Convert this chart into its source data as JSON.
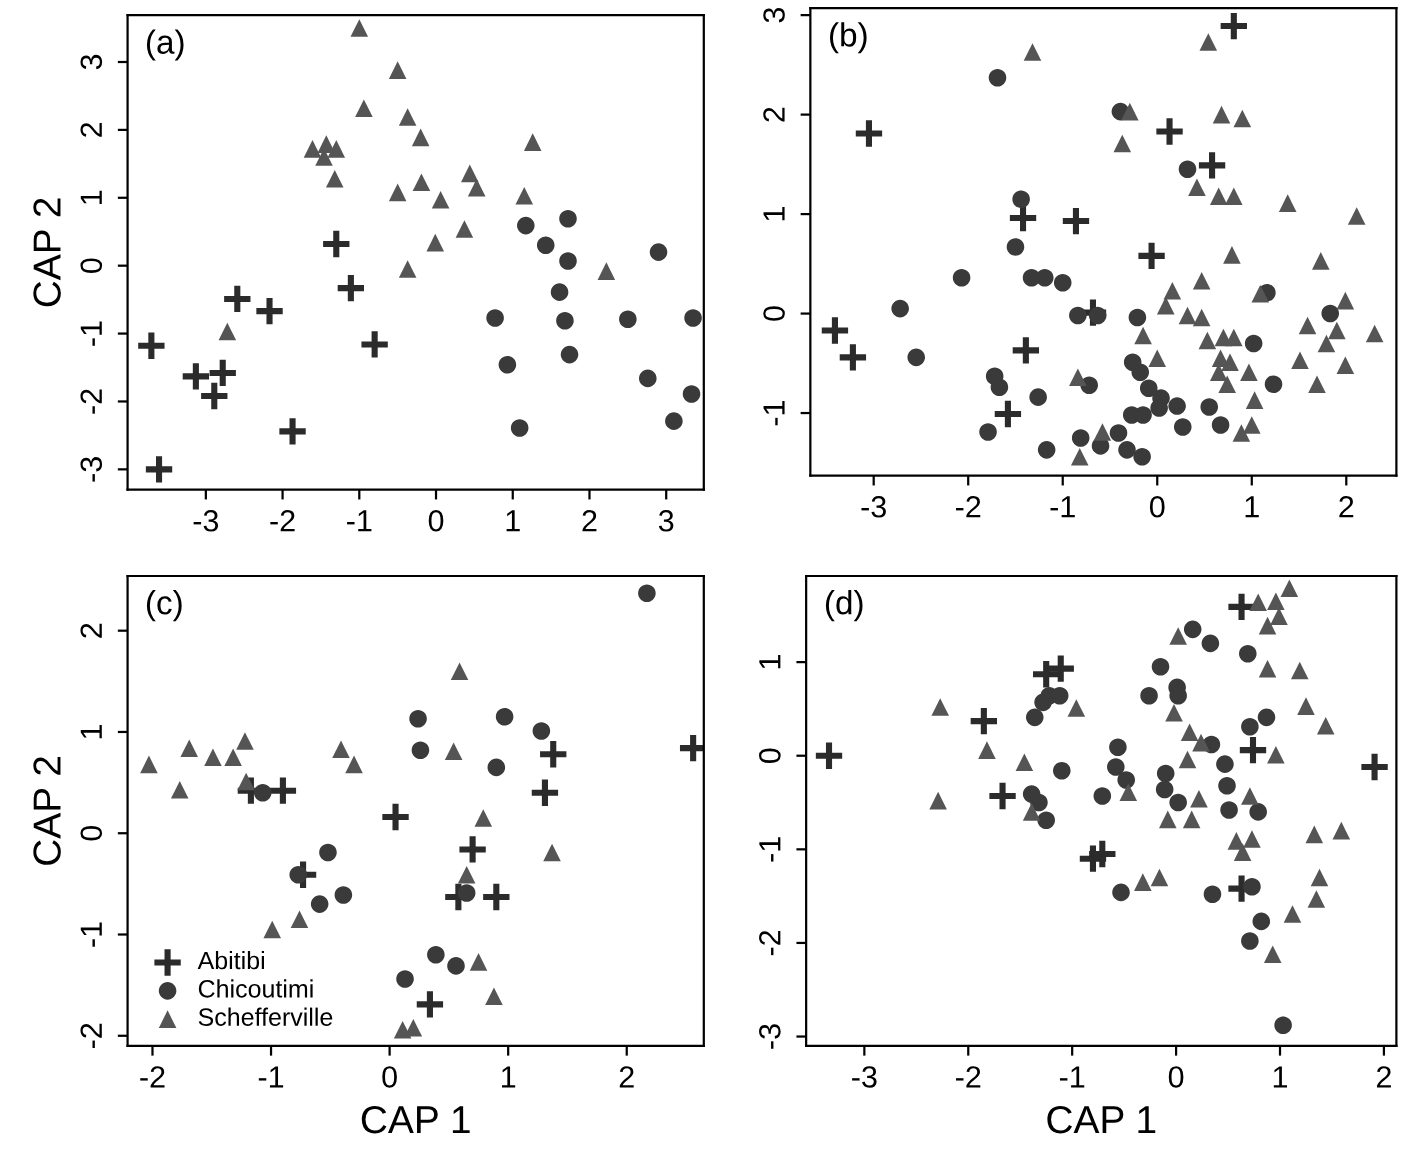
{
  "chart_data": [
    {
      "type": "scatter",
      "annotations": [
        "(a)"
      ],
      "ylabel": "CAP 2",
      "xlim": [
        -4.02,
        3.49
      ],
      "ylim": [
        -3.3,
        3.69
      ],
      "xticks": [
        -3,
        -2,
        -1,
        0,
        1,
        2,
        3
      ],
      "yticks": [
        -3,
        -2,
        -1,
        0,
        1,
        2,
        3
      ],
      "grid": false,
      "legend": false,
      "series": [
        {
          "marker": "cross",
          "color": "#2b2b2b",
          "x": [
            -3.71,
            -3.61,
            -3.13,
            -2.78,
            -2.89,
            -2.59,
            -2.17,
            -1.87,
            -1.3,
            -1.11,
            -0.8
          ],
          "values": [
            -1.18,
            -3.0,
            -1.63,
            -1.58,
            -1.92,
            -0.49,
            -0.67,
            -2.44,
            0.32,
            -0.33,
            -1.16
          ]
        },
        {
          "marker": "circle",
          "color": "#3a3a3a",
          "x": [
            0.77,
            0.93,
            1.09,
            1.17,
            1.43,
            1.72,
            1.72,
            1.61,
            1.68,
            1.74,
            2.5,
            2.76,
            2.9,
            3.1,
            3.33,
            3.35
          ],
          "values": [
            -0.77,
            -1.46,
            -2.39,
            0.59,
            0.3,
            0.69,
            0.07,
            -0.39,
            -0.81,
            -1.31,
            -0.79,
            -1.66,
            0.2,
            -2.29,
            -1.89,
            -0.77
          ]
        },
        {
          "marker": "triangle",
          "color": "#555555",
          "x": [
            -1.0,
            -0.5,
            -0.94,
            -0.37,
            -0.2,
            1.26,
            -1.61,
            -1.43,
            -1.3,
            -1.46,
            -1.32,
            -0.5,
            -0.19,
            0.06,
            0.44,
            0.53,
            1.15,
            0.37,
            -0.01,
            -0.37,
            2.22,
            -2.72
          ],
          "values": [
            3.5,
            2.88,
            2.32,
            2.19,
            1.89,
            1.82,
            1.72,
            1.79,
            1.72,
            1.6,
            1.28,
            1.08,
            1.23,
            0.97,
            1.36,
            1.15,
            1.03,
            0.54,
            0.34,
            -0.05,
            -0.08,
            -0.97
          ]
        }
      ]
    },
    {
      "type": "scatter",
      "annotations": [
        "(b)"
      ],
      "xlim": [
        -3.67,
        2.53
      ],
      "ylim": [
        -1.63,
        3.07
      ],
      "xticks": [
        -3,
        -2,
        -1,
        0,
        1,
        2
      ],
      "yticks": [
        -1,
        0,
        1,
        2,
        3
      ],
      "grid": false,
      "legend": false,
      "series": [
        {
          "marker": "cross",
          "color": "#2b2b2b",
          "x": [
            -3.05,
            -3.41,
            -3.22,
            -1.42,
            -0.86,
            -1.39,
            -1.58,
            -0.06,
            0.13,
            0.58,
            0.81,
            -0.68
          ],
          "values": [
            1.81,
            -0.17,
            -0.44,
            0.96,
            0.93,
            -0.37,
            -1.01,
            0.58,
            1.83,
            1.49,
            2.89,
            0.01
          ]
        },
        {
          "marker": "circle",
          "color": "#3a3a3a",
          "x": [
            -1.69,
            -2.07,
            -2.72,
            -2.55,
            -1.44,
            -1.5,
            -1.33,
            -1.19,
            -1.0,
            -0.84,
            -0.63,
            -1.72,
            -1.67,
            -1.26,
            -1.79,
            -1.17,
            -0.81,
            -0.72,
            -0.6,
            -0.41,
            -0.32,
            -0.16,
            -0.27,
            -0.15,
            -0.21,
            -0.26,
            -0.18,
            -0.09,
            0.04,
            0.02,
            0.21,
            0.27,
            -0.39,
            0.32,
            0.55,
            0.67,
            1.02,
            1.23,
            1.16,
            1.83
          ],
          "values": [
            2.37,
            0.36,
            0.05,
            -0.44,
            1.15,
            0.67,
            0.36,
            0.36,
            0.31,
            -0.02,
            -0.02,
            -0.63,
            -0.74,
            -0.84,
            -1.19,
            -1.37,
            -1.25,
            -0.72,
            -1.33,
            -1.2,
            -1.37,
            -1.44,
            -1.02,
            -1.02,
            -0.04,
            -0.49,
            -0.59,
            -0.75,
            -0.85,
            -0.95,
            -0.93,
            -1.14,
            2.03,
            1.45,
            -0.94,
            -1.12,
            -0.3,
            -0.71,
            0.21,
            0.0
          ]
        },
        {
          "marker": "triangle",
          "color": "#555555",
          "x": [
            -1.32,
            0.54,
            0.68,
            0.9,
            -0.37,
            -0.29,
            0.42,
            0.65,
            0.81,
            0.79,
            1.38,
            2.11,
            1.73,
            0.47,
            0.16,
            0.09,
            0.32,
            0.47,
            0.53,
            0.7,
            0.81,
            1.09,
            -0.15,
            0.0,
            0.67,
            0.77,
            0.65,
            0.74,
            0.97,
            1.03,
            1.0,
            0.89,
            1.59,
            1.79,
            1.51,
            1.69,
            1.99,
            1.9,
            1.99,
            2.3,
            -0.84,
            -0.82,
            -0.58
          ],
          "values": [
            2.63,
            2.73,
            2.0,
            1.96,
            1.71,
            2.03,
            1.27,
            1.18,
            1.18,
            0.59,
            1.11,
            0.98,
            0.53,
            0.33,
            0.23,
            0.08,
            -0.02,
            -0.04,
            -0.27,
            -0.24,
            -0.24,
            0.2,
            -0.22,
            -0.45,
            -0.45,
            -0.49,
            -0.59,
            -0.71,
            -0.59,
            -0.87,
            -1.12,
            -1.2,
            -0.12,
            -0.3,
            -0.47,
            -0.71,
            -0.52,
            -0.17,
            0.13,
            -0.2,
            -0.64,
            -1.44,
            -1.19
          ]
        }
      ]
    },
    {
      "type": "scatter",
      "annotations": [
        "(c)"
      ],
      "xlabel": "CAP 1",
      "ylabel": "CAP 2",
      "xlim": [
        -2.21,
        2.65
      ],
      "ylim": [
        -2.1,
        2.54
      ],
      "xticks": [
        -2,
        -1,
        0,
        1,
        2
      ],
      "yticks": [
        -2,
        -1,
        0,
        1,
        2
      ],
      "grid": false,
      "legend": "bottom left",
      "series": [
        {
          "name": "Abitibi",
          "marker": "cross",
          "color": "#2b2b2b",
          "x": [
            2.56,
            1.38,
            1.31,
            0.05,
            0.7,
            0.58,
            0.9,
            0.34,
            -0.9,
            -1.17,
            -0.73
          ],
          "values": [
            0.84,
            0.78,
            0.4,
            0.16,
            -0.16,
            -0.63,
            -0.63,
            -1.69,
            0.42,
            0.42,
            -0.41
          ]
        },
        {
          "name": "Chicoutimi",
          "marker": "circle",
          "color": "#3a3a3a",
          "x": [
            2.17,
            0.24,
            0.26,
            0.97,
            1.28,
            0.9,
            0.65,
            -1.07,
            -0.77,
            -0.52,
            -0.59,
            -0.39,
            0.39,
            0.56,
            0.13
          ],
          "values": [
            2.37,
            1.13,
            0.82,
            1.15,
            1.01,
            0.65,
            -0.59,
            0.4,
            -0.41,
            -0.19,
            -0.7,
            -0.61,
            -1.2,
            -1.31,
            -1.44
          ]
        },
        {
          "name": "Schefferville",
          "marker": "triangle",
          "color": "#555555",
          "x": [
            -2.03,
            -1.69,
            -1.49,
            -1.32,
            -1.22,
            -1.77,
            -1.21,
            -0.41,
            -0.3,
            0.59,
            0.54,
            0.79,
            1.37,
            0.65,
            -0.76,
            -0.99,
            0.75,
            0.88,
            0.11,
            0.2
          ],
          "values": [
            0.68,
            0.84,
            0.75,
            0.75,
            0.91,
            0.43,
            0.51,
            0.83,
            0.68,
            1.6,
            0.81,
            0.15,
            -0.19,
            -0.41,
            -0.85,
            -0.95,
            -1.27,
            -1.61,
            -1.94,
            -1.92
          ]
        }
      ]
    },
    {
      "type": "scatter",
      "annotations": [
        "(d)"
      ],
      "xlabel": "CAP 1",
      "xlim": [
        -3.56,
        2.12
      ],
      "ylim": [
        -3.1,
        1.92
      ],
      "xticks": [
        -3,
        -2,
        -1,
        0,
        1,
        2
      ],
      "yticks": [
        -3,
        -2,
        -1,
        0,
        1
      ],
      "grid": false,
      "legend": false,
      "series": [
        {
          "marker": "cross",
          "color": "#2b2b2b",
          "x": [
            -3.34,
            -1.85,
            -1.67,
            -1.25,
            -1.11,
            -0.8,
            -0.71,
            0.63,
            0.74,
            0.63,
            1.91
          ],
          "values": [
            0.0,
            0.37,
            -0.43,
            0.87,
            0.93,
            -1.1,
            -1.05,
            1.59,
            0.06,
            -1.42,
            -0.12
          ]
        },
        {
          "marker": "circle",
          "color": "#3a3a3a",
          "x": [
            -1.36,
            -1.28,
            -1.22,
            -1.12,
            -1.1,
            -1.39,
            -1.32,
            -1.25,
            -0.71,
            -0.56,
            -0.58,
            -0.48,
            -0.53,
            -0.26,
            -0.15,
            0.01,
            0.02,
            -0.1,
            -0.11,
            0.02,
            0.16,
            0.33,
            0.35,
            0.34,
            0.47,
            0.49,
            0.51,
            0.69,
            0.71,
            0.87,
            0.79,
            0.73,
            0.82,
            0.71,
            1.03
          ],
          "values": [
            0.41,
            0.57,
            0.64,
            0.64,
            -0.16,
            -0.41,
            -0.5,
            -0.69,
            -0.43,
            0.09,
            -0.12,
            -0.26,
            -1.46,
            0.64,
            0.95,
            0.73,
            0.64,
            -0.19,
            -0.36,
            -0.5,
            1.35,
            1.2,
            -1.48,
            0.12,
            -0.09,
            -0.32,
            -0.58,
            1.09,
            0.31,
            0.41,
            -0.6,
            -1.4,
            -1.77,
            -1.98,
            -2.88
          ]
        },
        {
          "marker": "triangle",
          "color": "#555555",
          "x": [
            -2.27,
            -2.29,
            -1.82,
            -1.46,
            -0.96,
            -1.39,
            -0.46,
            -0.32,
            -0.16,
            -0.08,
            0.15,
            0.22,
            0.02,
            -0.02,
            0.13,
            0.11,
            0.24,
            0.88,
            0.79,
            0.96,
            1.09,
            0.99,
            0.88,
            1.19,
            1.25,
            1.44,
            0.96,
            0.71,
            0.58,
            0.73,
            0.64,
            1.33,
            1.59,
            1.38,
            1.35,
            1.12,
            0.93
          ],
          "values": [
            0.52,
            -0.48,
            0.06,
            -0.07,
            0.51,
            -0.6,
            -0.39,
            -1.35,
            -1.3,
            -0.68,
            -0.68,
            -0.46,
            1.28,
            0.46,
            0.25,
            -0.04,
            0.14,
            1.39,
            1.64,
            1.65,
            1.79,
            1.49,
            0.93,
            0.91,
            0.53,
            0.32,
            0.01,
            -0.43,
            -0.91,
            -0.89,
            -1.03,
            -0.84,
            -0.8,
            -1.3,
            -1.53,
            -1.69,
            -2.12
          ]
        }
      ]
    }
  ]
}
